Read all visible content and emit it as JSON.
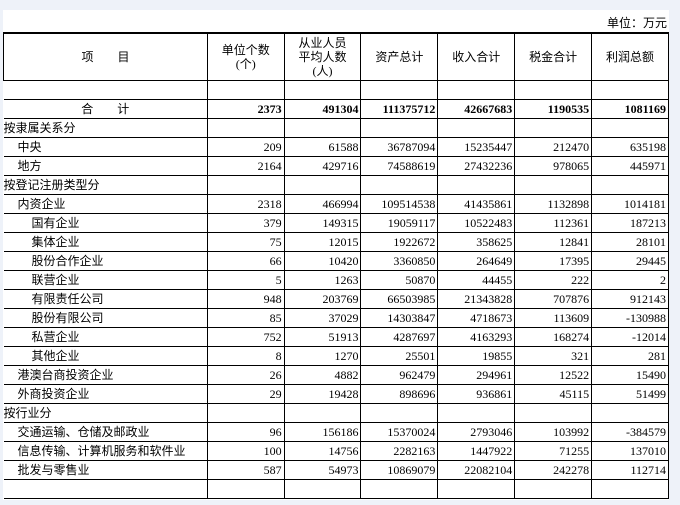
{
  "unit_label": "单位：万元",
  "headers": [
    "项　　目",
    "单位个数\n(个)",
    "从业人员\n平均人数\n(人)",
    "资产总计",
    "收入合计",
    "税金合计",
    "利润总额"
  ],
  "total": {
    "label": "合　　计",
    "values": [
      "2373",
      "491304",
      "111375712",
      "42667683",
      "1190535",
      "1081169"
    ]
  },
  "rows": [
    {
      "label": "按隶属关系分",
      "level": 0,
      "values": []
    },
    {
      "label": "中央",
      "level": 1,
      "values": [
        "209",
        "61588",
        "36787094",
        "15235447",
        "212470",
        "635198"
      ]
    },
    {
      "label": "地方",
      "level": 1,
      "values": [
        "2164",
        "429716",
        "74588619",
        "27432236",
        "978065",
        "445971"
      ]
    },
    {
      "label": "按登记注册类型分",
      "level": 0,
      "values": []
    },
    {
      "label": "内资企业",
      "level": 1,
      "values": [
        "2318",
        "466994",
        "109514538",
        "41435861",
        "1132898",
        "1014181"
      ]
    },
    {
      "label": "国有企业",
      "level": 2,
      "values": [
        "379",
        "149315",
        "19059117",
        "10522483",
        "112361",
        "187213"
      ]
    },
    {
      "label": "集体企业",
      "level": 2,
      "values": [
        "75",
        "12015",
        "1922672",
        "358625",
        "12841",
        "28101"
      ]
    },
    {
      "label": "股份合作企业",
      "level": 2,
      "values": [
        "66",
        "10420",
        "3360850",
        "264649",
        "17395",
        "29445"
      ]
    },
    {
      "label": "联营企业",
      "level": 2,
      "values": [
        "5",
        "1263",
        "50870",
        "44455",
        "222",
        "2"
      ]
    },
    {
      "label": "有限责任公司",
      "level": 2,
      "values": [
        "948",
        "203769",
        "66503985",
        "21343828",
        "707876",
        "912143"
      ]
    },
    {
      "label": "股份有限公司",
      "level": 2,
      "values": [
        "85",
        "37029",
        "14303847",
        "4718673",
        "113609",
        "-130988"
      ]
    },
    {
      "label": "私营企业",
      "level": 2,
      "values": [
        "752",
        "51913",
        "4287697",
        "4163293",
        "168274",
        "-12014"
      ]
    },
    {
      "label": "其他企业",
      "level": 2,
      "values": [
        "8",
        "1270",
        "25501",
        "19855",
        "321",
        "281"
      ]
    },
    {
      "label": "港澳台商投资企业",
      "level": 1,
      "values": [
        "26",
        "4882",
        "962479",
        "294961",
        "12522",
        "15490"
      ]
    },
    {
      "label": "外商投资企业",
      "level": 1,
      "values": [
        "29",
        "19428",
        "898696",
        "936861",
        "45115",
        "51499"
      ]
    },
    {
      "label": "按行业分",
      "level": 0,
      "values": []
    },
    {
      "label": "交通运输、仓储及邮政业",
      "level": 1,
      "values": [
        "96",
        "156186",
        "15370024",
        "2793046",
        "103992",
        "-384579"
      ]
    },
    {
      "label": "信息传输、计算机服务和软件业",
      "level": 1,
      "values": [
        "100",
        "14756",
        "2282163",
        "1447922",
        "71255",
        "137010"
      ]
    },
    {
      "label": "批发与零售业",
      "level": 1,
      "values": [
        "587",
        "54973",
        "10869079",
        "22082104",
        "242278",
        "112714"
      ]
    },
    {
      "label": "",
      "level": 0,
      "values": []
    }
  ]
}
